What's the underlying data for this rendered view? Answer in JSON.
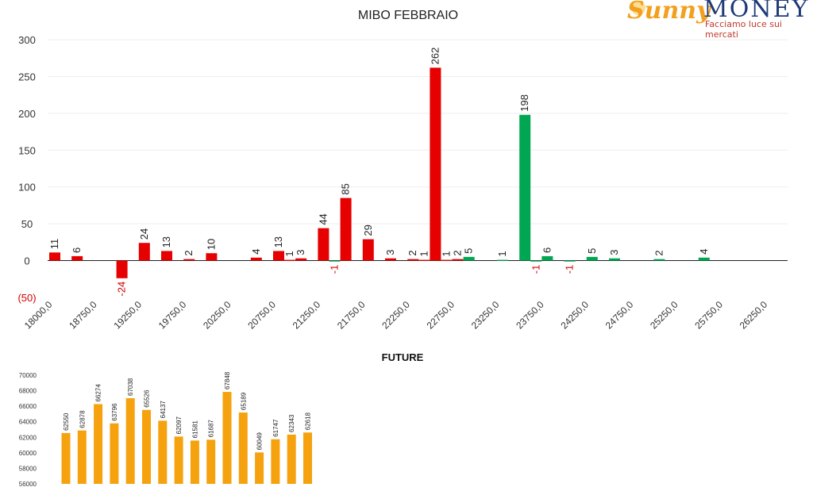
{
  "logo": {
    "brand_part1": "Sunny",
    "brand_part2": "MONEY",
    "tagline": "Facciamo luce sui mercati"
  },
  "colors": {
    "put": "#e60000",
    "call": "#00a651",
    "future": "#f5a20e",
    "axis": "#222222",
    "grid": "#eeeeee"
  },
  "chart_data": [
    {
      "type": "bar",
      "title": "MIBO FEBBRAIO",
      "ylim": [
        -50,
        300
      ],
      "yticks": [
        "300",
        "250",
        "200",
        "150",
        "100",
        "50",
        "0",
        "(50)"
      ],
      "ytick_values": [
        300,
        250,
        200,
        150,
        100,
        50,
        0,
        -50
      ],
      "xtick_labels": [
        "18000,0",
        "18750,0",
        "19250,0",
        "19750,0",
        "20250,0",
        "20750,0",
        "21250,0",
        "21750,0",
        "22250,0",
        "22750,0",
        "23250,0",
        "23750,0",
        "24250,0",
        "24750,0",
        "25250,0",
        "25750,0",
        "26250,0"
      ],
      "grid": true,
      "series": [
        {
          "color": "put",
          "points": [
            {
              "slot": 0,
              "value": 11
            },
            {
              "slot": 1,
              "value": 6
            },
            {
              "slot": 3,
              "value": -24
            },
            {
              "slot": 4,
              "value": 24
            },
            {
              "slot": 5,
              "value": 13
            },
            {
              "slot": 6,
              "value": 2
            },
            {
              "slot": 7,
              "value": 10
            },
            {
              "slot": 9,
              "value": 4
            },
            {
              "slot": 10,
              "value": 13
            },
            {
              "slot": 10.5,
              "value": 1
            },
            {
              "slot": 11,
              "value": 3
            },
            {
              "slot": 12,
              "value": 44
            },
            {
              "slot": 13,
              "value": 85
            },
            {
              "slot": 14,
              "value": 29
            },
            {
              "slot": 15,
              "value": 3
            },
            {
              "slot": 16,
              "value": 2
            },
            {
              "slot": 16.5,
              "value": 1
            },
            {
              "slot": 17,
              "value": 262
            },
            {
              "slot": 17.5,
              "value": 1
            },
            {
              "slot": 18,
              "value": 2
            }
          ]
        },
        {
          "color": "call",
          "points": [
            {
              "slot": 12.5,
              "value": -1
            },
            {
              "slot": 18.5,
              "value": 5
            },
            {
              "slot": 20,
              "value": 1
            },
            {
              "slot": 21,
              "value": 198
            },
            {
              "slot": 21.5,
              "value": -1
            },
            {
              "slot": 22,
              "value": 6
            },
            {
              "slot": 23,
              "value": -1
            },
            {
              "slot": 24,
              "value": 5
            },
            {
              "slot": 25,
              "value": 3
            },
            {
              "slot": 27,
              "value": 2
            },
            {
              "slot": 29,
              "value": 4
            }
          ]
        }
      ]
    },
    {
      "type": "bar",
      "title": "FUTURE",
      "ylim": [
        56000,
        70000
      ],
      "yticks": [
        "70000",
        "68000",
        "66000",
        "64000",
        "62000",
        "60000",
        "58000",
        "56000"
      ],
      "ytick_values": [
        70000,
        68000,
        66000,
        64000,
        62000,
        60000,
        58000,
        56000
      ],
      "values": [
        62550,
        62878,
        66274,
        63796,
        67038,
        65526,
        64137,
        62097,
        61581,
        61687,
        67848,
        65189,
        60049,
        61747,
        62343,
        62618
      ]
    }
  ]
}
